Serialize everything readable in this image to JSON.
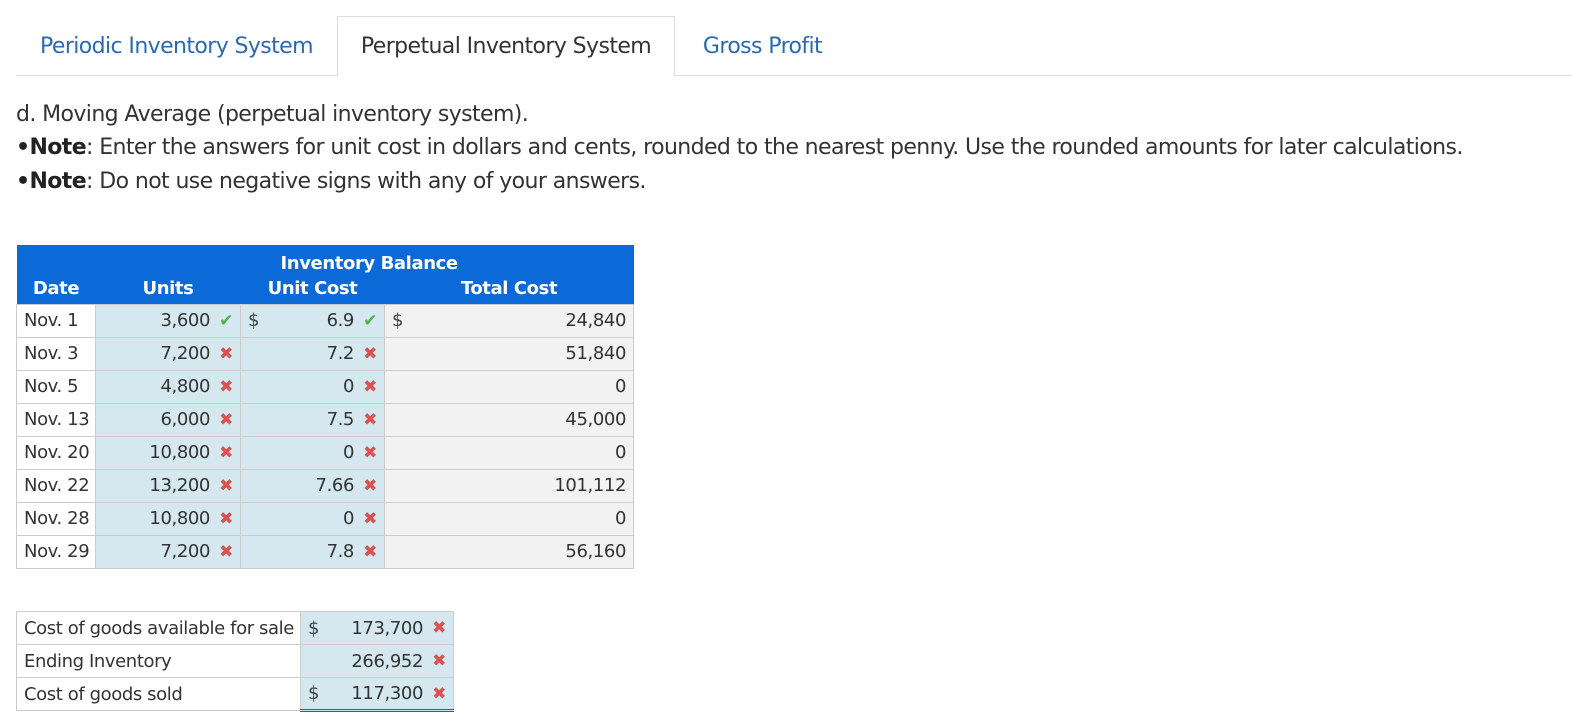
{
  "tabs": [
    {
      "label": "Periodic Inventory System"
    },
    {
      "label": "Perpetual Inventory System"
    },
    {
      "label": "Gross Profit"
    }
  ],
  "instructions": {
    "heading": "d. Moving Average (perpetual inventory system).",
    "note1_bullet": "•",
    "note1_label": "Note",
    "note1_text": ": Enter the answers for unit cost in dollars and cents, rounded to the nearest penny. Use the rounded amounts for later calculations.",
    "note2_bullet": "•",
    "note2_label": "Note",
    "note2_text": ": Do not use negative signs with any of your answers."
  },
  "table": {
    "group_header": "Inventory Balance",
    "headers": {
      "date": "Date",
      "units": "Units",
      "unit_cost": "Unit Cost",
      "total_cost": "Total Cost"
    },
    "currency": "$",
    "rows": [
      {
        "date": "Nov. 1",
        "units": "3,600",
        "units_mark": "✔",
        "unit_cost": "6.9",
        "cost_mark": "✔",
        "total_cost": "24,840"
      },
      {
        "date": "Nov. 3",
        "units": "7,200",
        "units_mark": "✖",
        "unit_cost": "7.2",
        "cost_mark": "✖",
        "total_cost": "51,840"
      },
      {
        "date": "Nov. 5",
        "units": "4,800",
        "units_mark": "✖",
        "unit_cost": "0",
        "cost_mark": "✖",
        "total_cost": "0"
      },
      {
        "date": "Nov. 13",
        "units": "6,000",
        "units_mark": "✖",
        "unit_cost": "7.5",
        "cost_mark": "✖",
        "total_cost": "45,000"
      },
      {
        "date": "Nov. 20",
        "units": "10,800",
        "units_mark": "✖",
        "unit_cost": "0",
        "cost_mark": "✖",
        "total_cost": "0"
      },
      {
        "date": "Nov. 22",
        "units": "13,200",
        "units_mark": "✖",
        "unit_cost": "7.66",
        "cost_mark": "✖",
        "total_cost": "101,112"
      },
      {
        "date": "Nov. 28",
        "units": "10,800",
        "units_mark": "✖",
        "unit_cost": "0",
        "cost_mark": "✖",
        "total_cost": "0"
      },
      {
        "date": "Nov. 29",
        "units": "7,200",
        "units_mark": "✖",
        "unit_cost": "7.8",
        "cost_mark": "✖",
        "total_cost": "56,160"
      }
    ]
  },
  "summary": {
    "currency": "$",
    "rows": [
      {
        "label": "Cost of goods available for sale",
        "value": "173,700",
        "mark": "✖"
      },
      {
        "label": "Ending Inventory",
        "value": "266,952",
        "mark": "✖"
      },
      {
        "label": "Cost of goods sold",
        "value": "117,300",
        "mark": "✖"
      }
    ]
  },
  "colors": {
    "header_bg": "#0c6ad8",
    "input_bg": "#d5e8f0",
    "correct": "#4caf50",
    "incorrect": "#d9534f",
    "tab_link": "#2a6ab5"
  }
}
